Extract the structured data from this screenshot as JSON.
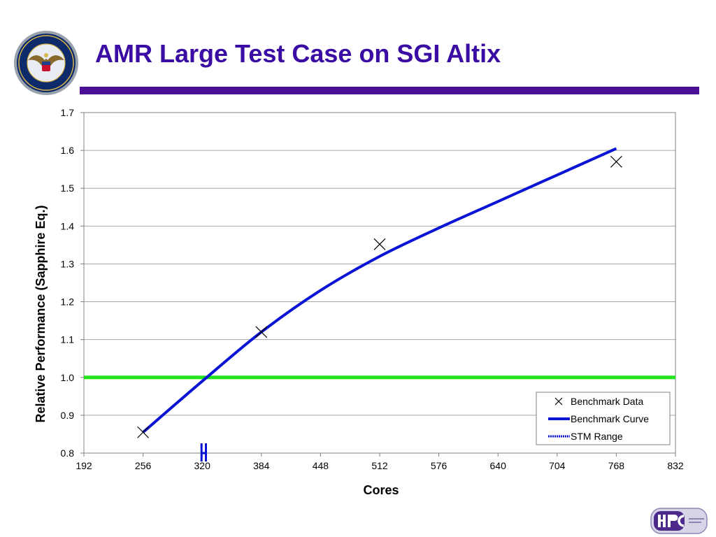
{
  "slide": {
    "title": "AMR Large Test Case on SGI Altix",
    "seal_icon": "department-of-defense-seal-icon",
    "logo_icon": "hpc-modernization-program-logo-icon"
  },
  "chart_data": {
    "type": "line",
    "title": "",
    "xlabel": "Cores",
    "ylabel": "Relative Performance (Sapphire Eq.)",
    "xlim": [
      192,
      832
    ],
    "ylim": [
      0.8,
      1.7
    ],
    "xticks": [
      "192",
      "256",
      "320",
      "384",
      "448",
      "512",
      "576",
      "640",
      "704",
      "768",
      "832"
    ],
    "yticks": [
      "0.8",
      "0.9",
      "1.0",
      "1.1",
      "1.2",
      "1.3",
      "1.4",
      "1.5",
      "1.6",
      "1.7"
    ],
    "grid": true,
    "legend_position": "bottom-right",
    "series": [
      {
        "name": "Benchmark Data",
        "kind": "scatter",
        "marker": "x",
        "color": "#000000",
        "x": [
          256,
          384,
          512,
          768
        ],
        "y": [
          0.855,
          1.12,
          1.352,
          1.57
        ]
      },
      {
        "name": "Benchmark Curve",
        "kind": "line",
        "color": "#0a14d4",
        "x": [
          256,
          320,
          384,
          448,
          512,
          576,
          640,
          704,
          768
        ],
        "y": [
          0.855,
          0.99,
          1.12,
          1.23,
          1.32,
          1.395,
          1.465,
          1.535,
          1.605
        ]
      },
      {
        "name": "STM Range",
        "kind": "range",
        "color": "#0a14d4",
        "x": [
          320,
          324
        ]
      }
    ],
    "reference_line": {
      "y": 1.0,
      "color": "#22e31c"
    }
  }
}
